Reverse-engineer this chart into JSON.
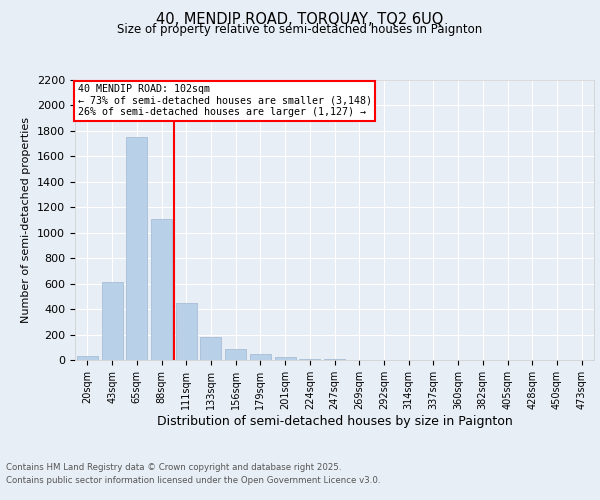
{
  "title1": "40, MENDIP ROAD, TORQUAY, TQ2 6UQ",
  "title2": "Size of property relative to semi-detached houses in Paignton",
  "xlabel": "Distribution of semi-detached houses by size in Paignton",
  "ylabel": "Number of semi-detached properties",
  "categories": [
    "20sqm",
    "43sqm",
    "65sqm",
    "88sqm",
    "111sqm",
    "133sqm",
    "156sqm",
    "179sqm",
    "201sqm",
    "224sqm",
    "247sqm",
    "269sqm",
    "292sqm",
    "314sqm",
    "337sqm",
    "360sqm",
    "382sqm",
    "405sqm",
    "428sqm",
    "450sqm",
    "473sqm"
  ],
  "values": [
    30,
    610,
    1750,
    1110,
    450,
    180,
    90,
    45,
    25,
    10,
    5,
    3,
    2,
    1,
    1,
    0,
    0,
    0,
    0,
    0,
    0
  ],
  "bar_color": "#b8d0e8",
  "bar_edgecolor": "#a0b8d0",
  "vline_color": "red",
  "vline_pos": 3.5,
  "annotation_title": "40 MENDIP ROAD: 102sqm",
  "annotation_line1": "← 73% of semi-detached houses are smaller (3,148)",
  "annotation_line2": "26% of semi-detached houses are larger (1,127) →",
  "ylim": [
    0,
    2200
  ],
  "yticks": [
    0,
    200,
    400,
    600,
    800,
    1000,
    1200,
    1400,
    1600,
    1800,
    2000,
    2200
  ],
  "bg_color": "#e8eef5",
  "grid_color": "#ffffff",
  "footer1": "Contains HM Land Registry data © Crown copyright and database right 2025.",
  "footer2": "Contains public sector information licensed under the Open Government Licence v3.0."
}
